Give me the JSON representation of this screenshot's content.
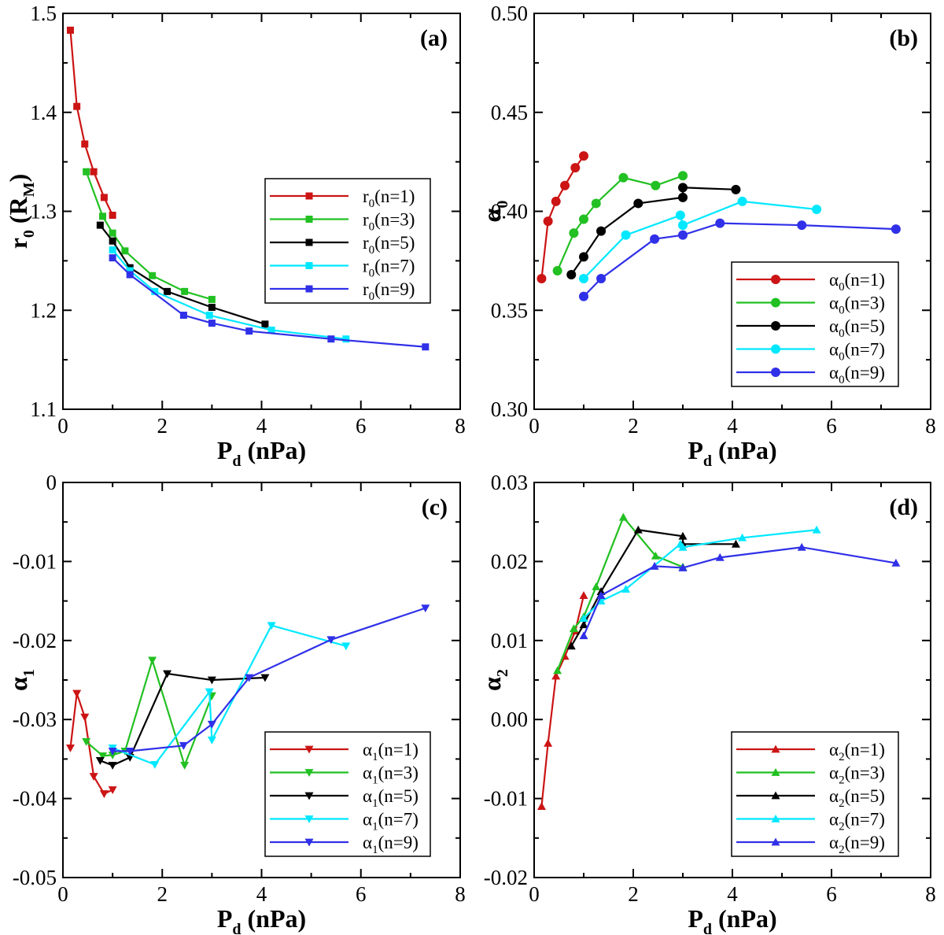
{
  "chart_data": [
    {
      "type": "line",
      "panel": "(a)",
      "xlabel": "P",
      "xlabel_sub": "d",
      "xlabel_unit": " (nPa)",
      "ylabel": "r",
      "ylabel_sub": "0",
      "ylabel_unit": " (R",
      "ylabel_unit_sub": "M",
      "ylabel_close": ")",
      "xlim": [
        0,
        8
      ],
      "ylim": [
        1.1,
        1.5
      ],
      "xticks": [
        0,
        2,
        4,
        6,
        8
      ],
      "xtick_labels": [
        "0",
        "2",
        "4",
        "6",
        "8"
      ],
      "yticks": [
        1.1,
        1.2,
        1.3,
        1.4,
        1.5
      ],
      "ytick_labels": [
        "1.1",
        "1.2",
        "1.3",
        "1.4",
        "1.5"
      ],
      "marker": "square",
      "legend_position": "middle-right",
      "series": [
        {
          "name": "r0(n=1)",
          "label_main": "r",
          "label_sub": "0",
          "label_rest": "(n=1)",
          "color": "#cc1414",
          "x": [
            0.15,
            0.28,
            0.44,
            0.62,
            0.83,
            1.0
          ],
          "y": [
            1.483,
            1.406,
            1.368,
            1.34,
            1.314,
            1.296
          ]
        },
        {
          "name": "r0(n=3)",
          "label_main": "r",
          "label_sub": "0",
          "label_rest": "(n=3)",
          "color": "#22c022",
          "x": [
            0.47,
            0.8,
            1.0,
            1.25,
            1.8,
            2.45,
            3.0
          ],
          "y": [
            1.34,
            1.295,
            1.278,
            1.26,
            1.235,
            1.219,
            1.211
          ]
        },
        {
          "name": "r0(n=5)",
          "label_main": "r",
          "label_sub": "0",
          "label_rest": "(n=5)",
          "color": "#000000",
          "x": [
            0.75,
            1.0,
            1.35,
            2.1,
            3.0,
            4.07
          ],
          "y": [
            1.286,
            1.27,
            1.243,
            1.219,
            1.203,
            1.186
          ]
        },
        {
          "name": "r0(n=7)",
          "label_main": "r",
          "label_sub": "0",
          "label_rest": "(n=7)",
          "color": "#00e8ff",
          "x": [
            1.0,
            1.35,
            1.85,
            2.95,
            4.2,
            5.7
          ],
          "y": [
            1.261,
            1.24,
            1.219,
            1.195,
            1.18,
            1.171
          ]
        },
        {
          "name": "r0(n=9)",
          "label_main": "r",
          "label_sub": "0",
          "label_rest": "(n=9)",
          "color": "#3030e8",
          "x": [
            1.0,
            1.35,
            2.43,
            3.0,
            3.75,
            5.4,
            7.3
          ],
          "y": [
            1.253,
            1.236,
            1.195,
            1.187,
            1.179,
            1.171,
            1.163
          ]
        }
      ]
    },
    {
      "type": "line",
      "panel": "(b)",
      "xlabel": "P",
      "xlabel_sub": "d",
      "xlabel_unit": " (nPa)",
      "ylabel": "α",
      "ylabel_sub": "0",
      "xlim": [
        0,
        8
      ],
      "ylim": [
        0.3,
        0.5
      ],
      "xticks": [
        0,
        2,
        4,
        6,
        8
      ],
      "xtick_labels": [
        "0",
        "2",
        "4",
        "6",
        "8"
      ],
      "yticks": [
        0.3,
        0.35,
        0.4,
        0.45,
        0.5
      ],
      "ytick_labels": [
        "0.30",
        "0.35",
        "0.40",
        "0.45",
        "0.50"
      ],
      "marker": "circle",
      "legend_position": "bottom-right",
      "series": [
        {
          "name": "α0(n=1)",
          "label_main": "α",
          "label_sub": "0",
          "label_rest": "(n=1)",
          "color": "#cc1414",
          "x": [
            0.15,
            0.28,
            0.44,
            0.62,
            0.83,
            1.0
          ],
          "y": [
            0.366,
            0.395,
            0.405,
            0.413,
            0.422,
            0.428
          ]
        },
        {
          "name": "α0(n=3)",
          "label_main": "α",
          "label_sub": "0",
          "label_rest": "(n=3)",
          "color": "#22c022",
          "x": [
            0.47,
            0.8,
            1.0,
            1.25,
            1.8,
            2.45,
            3.0
          ],
          "y": [
            0.37,
            0.389,
            0.396,
            0.404,
            0.417,
            0.413,
            0.418
          ]
        },
        {
          "name": "α0(n=5)",
          "label_main": "α",
          "label_sub": "0",
          "label_rest": "(n=5)",
          "color": "#000000",
          "x": [
            0.75,
            1.0,
            1.35,
            2.1,
            3.0,
            3.0,
            4.07
          ],
          "y": [
            0.368,
            0.377,
            0.39,
            0.404,
            0.407,
            0.412,
            0.411
          ]
        },
        {
          "name": "α0(n=7)",
          "label_main": "α",
          "label_sub": "0",
          "label_rest": "(n=7)",
          "color": "#00e8ff",
          "x": [
            1.0,
            1.85,
            2.95,
            3.0,
            4.2,
            5.7
          ],
          "y": [
            0.366,
            0.388,
            0.398,
            0.393,
            0.405,
            0.401
          ]
        },
        {
          "name": "α0(n=9)",
          "label_main": "α",
          "label_sub": "0",
          "label_rest": "(n=9)",
          "color": "#3030e8",
          "x": [
            1.0,
            1.35,
            2.43,
            3.0,
            3.75,
            5.4,
            7.3
          ],
          "y": [
            0.357,
            0.366,
            0.386,
            0.388,
            0.394,
            0.393,
            0.391
          ]
        }
      ]
    },
    {
      "type": "line",
      "panel": "(c)",
      "xlabel": "P",
      "xlabel_sub": "d",
      "xlabel_unit": " (nPa)",
      "ylabel": "α",
      "ylabel_sub": "1",
      "xlim": [
        0,
        8
      ],
      "ylim": [
        -0.05,
        0
      ],
      "xticks": [
        0,
        2,
        4,
        6,
        8
      ],
      "xtick_labels": [
        "0",
        "2",
        "4",
        "6",
        "8"
      ],
      "yticks": [
        -0.05,
        -0.04,
        -0.03,
        -0.02,
        -0.01,
        0
      ],
      "ytick_labels": [
        "-0.05",
        "-0.04",
        "-0.03",
        "-0.02",
        "-0.01",
        "0"
      ],
      "marker": "triangle-down",
      "legend_position": "bottom-right",
      "series": [
        {
          "name": "α1(n=1)",
          "label_main": "α",
          "label_sub": "1",
          "label_rest": "(n=1)",
          "color": "#cc1414",
          "x": [
            0.15,
            0.28,
            0.44,
            0.62,
            0.83,
            1.0
          ],
          "y": [
            -0.0336,
            -0.0267,
            -0.0297,
            -0.0372,
            -0.0394,
            -0.0389
          ]
        },
        {
          "name": "α1(n=3)",
          "label_main": "α",
          "label_sub": "1",
          "label_rest": "(n=3)",
          "color": "#22c022",
          "x": [
            0.47,
            0.8,
            1.0,
            1.25,
            1.8,
            2.45,
            3.0
          ],
          "y": [
            -0.0328,
            -0.0346,
            -0.0345,
            -0.034,
            -0.0225,
            -0.0358,
            -0.027
          ]
        },
        {
          "name": "α1(n=5)",
          "label_main": "α",
          "label_sub": "1",
          "label_rest": "(n=5)",
          "color": "#000000",
          "x": [
            0.75,
            1.0,
            1.35,
            2.1,
            3.0,
            4.07
          ],
          "y": [
            -0.0352,
            -0.0358,
            -0.0348,
            -0.0242,
            -0.025,
            -0.0247
          ]
        },
        {
          "name": "α1(n=7)",
          "label_main": "α",
          "label_sub": "1",
          "label_rest": "(n=7)",
          "color": "#00e8ff",
          "x": [
            1.0,
            1.85,
            2.95,
            3.0,
            4.2,
            5.7
          ],
          "y": [
            -0.0336,
            -0.0357,
            -0.0265,
            -0.0326,
            -0.0181,
            -0.0207
          ]
        },
        {
          "name": "α1(n=9)",
          "label_main": "α",
          "label_sub": "1",
          "label_rest": "(n=9)",
          "color": "#3030e8",
          "x": [
            1.0,
            1.35,
            2.43,
            3.0,
            3.75,
            5.4,
            7.3
          ],
          "y": [
            -0.034,
            -0.034,
            -0.0333,
            -0.0306,
            -0.0247,
            -0.0199,
            -0.0159
          ]
        }
      ]
    },
    {
      "type": "line",
      "panel": "(d)",
      "xlabel": "P",
      "xlabel_sub": "d",
      "xlabel_unit": " (nPa)",
      "ylabel": "α",
      "ylabel_sub": "2",
      "xlim": [
        0,
        8
      ],
      "ylim": [
        -0.02,
        0.03
      ],
      "xticks": [
        0,
        2,
        4,
        6,
        8
      ],
      "xtick_labels": [
        "0",
        "2",
        "4",
        "6",
        "8"
      ],
      "yticks": [
        -0.02,
        -0.01,
        0,
        0.01,
        0.02,
        0.03
      ],
      "ytick_labels": [
        "-0.02",
        "-0.01",
        "0.00",
        "0.01",
        "0.02",
        "0.03"
      ],
      "marker": "triangle-up",
      "legend_position": "bottom-right",
      "series": [
        {
          "name": "α2(n=1)",
          "label_main": "α",
          "label_sub": "2",
          "label_rest": "(n=1)",
          "color": "#cc1414",
          "x": [
            0.15,
            0.28,
            0.44,
            0.62,
            0.83,
            1.0
          ],
          "y": [
            -0.011,
            -0.003,
            0.0055,
            0.008,
            0.0112,
            0.0157
          ]
        },
        {
          "name": "α2(n=3)",
          "label_main": "α",
          "label_sub": "2",
          "label_rest": "(n=3)",
          "color": "#22c022",
          "x": [
            0.47,
            0.8,
            1.0,
            1.25,
            1.8,
            2.45,
            3.0
          ],
          "y": [
            0.0062,
            0.0115,
            0.013,
            0.0168,
            0.0256,
            0.0207,
            0.0193
          ]
        },
        {
          "name": "α2(n=5)",
          "label_main": "α",
          "label_sub": "2",
          "label_rest": "(n=5)",
          "color": "#000000",
          "x": [
            0.75,
            1.0,
            1.35,
            2.1,
            3.0,
            3.0,
            4.07
          ],
          "y": [
            0.0093,
            0.012,
            0.0162,
            0.024,
            0.0232,
            0.0222,
            0.0222
          ]
        },
        {
          "name": "α2(n=7)",
          "label_main": "α",
          "label_sub": "2",
          "label_rest": "(n=7)",
          "color": "#00e8ff",
          "x": [
            1.0,
            1.35,
            1.85,
            2.95,
            3.0,
            4.2,
            5.7
          ],
          "y": [
            0.0128,
            0.015,
            0.0165,
            0.0222,
            0.0218,
            0.023,
            0.024
          ]
        },
        {
          "name": "α2(n=9)",
          "label_main": "α",
          "label_sub": "2",
          "label_rest": "(n=9)",
          "color": "#3030e8",
          "x": [
            1.0,
            1.35,
            2.43,
            3.0,
            3.75,
            5.4,
            7.3
          ],
          "y": [
            0.0106,
            0.0157,
            0.0194,
            0.0192,
            0.0205,
            0.0218,
            0.0198
          ]
        }
      ]
    }
  ]
}
